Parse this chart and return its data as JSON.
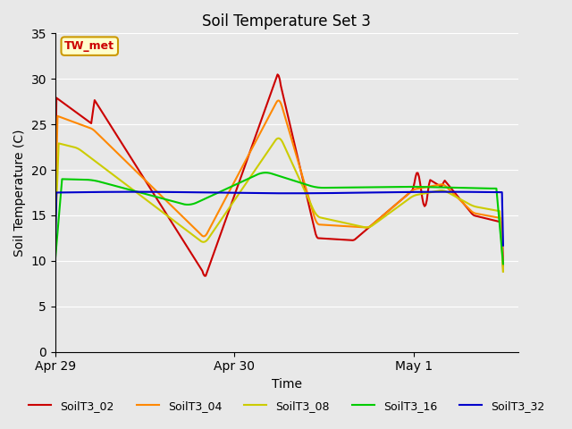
{
  "title": "Soil Temperature Set 3",
  "xlabel": "Time",
  "ylabel": "Soil Temperature (C)",
  "ylim": [
    0,
    35
  ],
  "yticks": [
    0,
    5,
    10,
    15,
    20,
    25,
    30,
    35
  ],
  "background_color": "#e8e8e8",
  "annotation_text": "TW_met",
  "annotation_color": "#cc0000",
  "annotation_bg": "#ffffcc",
  "annotation_border": "#cc9900",
  "series": {
    "SoilT3_02": {
      "color": "#cc0000",
      "linewidth": 1.5
    },
    "SoilT3_04": {
      "color": "#ff8800",
      "linewidth": 1.5
    },
    "SoilT3_08": {
      "color": "#cccc00",
      "linewidth": 1.5
    },
    "SoilT3_16": {
      "color": "#00cc00",
      "linewidth": 1.5
    },
    "SoilT3_32": {
      "color": "#0000cc",
      "linewidth": 1.5
    }
  },
  "xtick_labels": [
    "Apr 29",
    "Apr 30",
    "May 1"
  ],
  "xtick_pos": [
    0,
    24,
    48
  ],
  "xlim": [
    0,
    62
  ]
}
